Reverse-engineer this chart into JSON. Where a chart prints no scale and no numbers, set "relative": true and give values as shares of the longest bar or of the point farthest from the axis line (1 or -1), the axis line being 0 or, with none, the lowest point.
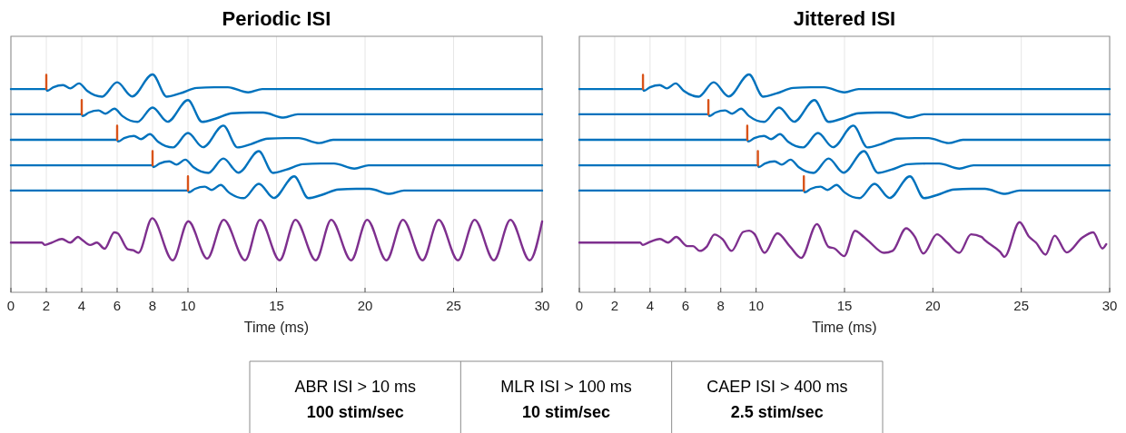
{
  "chart_data": [
    {
      "type": "line",
      "title": "Periodic ISI",
      "xlabel": "Time (ms)",
      "relative": true,
      "xlim": [
        0,
        30
      ],
      "xticks": [
        0,
        2,
        4,
        6,
        8,
        10,
        15,
        20,
        25,
        30
      ],
      "grid": "x",
      "tick_labels": "x",
      "line_style": "solid",
      "series": [
        {
          "color": "#0072bd",
          "x": [
            0,
            2,
            2.05,
            2.4,
            2.95,
            3.35,
            3.85,
            4.3,
            5.15,
            6,
            6.85,
            8,
            8.8,
            9.55,
            10.5,
            11.5,
            12.25,
            13.4,
            14.2,
            30
          ],
          "values": [
            0.933,
            0.933,
            0.925,
            0.941,
            0.951,
            0.936,
            0.959,
            0.925,
            0.898,
            0.964,
            0.899,
            1,
            0.898,
            0.913,
            0.938,
            0.941,
            0.941,
            0.918,
            0.933,
            0.933
          ]
        },
        {
          "color": "#0072bd",
          "x": [
            0,
            4,
            4.05,
            4.4,
            4.95,
            5.35,
            5.85,
            6.3,
            7.15,
            8,
            8.85,
            10,
            10.8,
            11.55,
            12.5,
            13.5,
            14.25,
            15.4,
            16.2,
            30
          ],
          "values": [
            0.817,
            0.817,
            0.809,
            0.825,
            0.835,
            0.82,
            0.843,
            0.809,
            0.782,
            0.848,
            0.783,
            0.882,
            0.782,
            0.797,
            0.822,
            0.825,
            0.825,
            0.802,
            0.817,
            0.817
          ]
        },
        {
          "color": "#0072bd",
          "x": [
            0,
            6,
            6.05,
            6.4,
            6.95,
            7.35,
            7.85,
            8.3,
            9.15,
            10,
            10.85,
            12,
            12.8,
            13.55,
            14.5,
            15.5,
            16.25,
            17.4,
            18.2,
            30
          ],
          "values": [
            0.7,
            0.7,
            0.692,
            0.708,
            0.718,
            0.703,
            0.726,
            0.692,
            0.665,
            0.731,
            0.666,
            0.765,
            0.665,
            0.68,
            0.705,
            0.708,
            0.708,
            0.685,
            0.7,
            0.7
          ]
        },
        {
          "color": "#0072bd",
          "x": [
            0,
            8,
            8.05,
            8.4,
            8.95,
            9.35,
            9.85,
            10.3,
            11.15,
            12,
            12.85,
            14,
            14.8,
            15.55,
            16.5,
            17.5,
            18.25,
            19.4,
            20.2,
            30
          ],
          "values": [
            0.583,
            0.583,
            0.575,
            0.591,
            0.601,
            0.586,
            0.609,
            0.575,
            0.548,
            0.614,
            0.549,
            0.648,
            0.548,
            0.563,
            0.588,
            0.591,
            0.591,
            0.568,
            0.583,
            0.583
          ]
        },
        {
          "color": "#0072bd",
          "x": [
            0,
            10,
            10.05,
            10.4,
            10.95,
            11.35,
            11.85,
            12.3,
            13.15,
            14,
            14.85,
            16,
            16.8,
            17.55,
            18.5,
            19.5,
            20.25,
            21.4,
            22.2,
            30
          ],
          "values": [
            0.467,
            0.467,
            0.459,
            0.475,
            0.485,
            0.47,
            0.493,
            0.459,
            0.432,
            0.498,
            0.433,
            0.532,
            0.432,
            0.447,
            0.472,
            0.475,
            0.475,
            0.452,
            0.467,
            0.467
          ]
        },
        {
          "color": "#7e2f8e",
          "x": [
            0,
            1.75,
            1.91,
            2.33,
            2.88,
            3.35,
            3.79,
            3.99,
            4.47,
            4.86,
            5.29,
            5.84,
            6.03,
            6.61,
            6.91,
            7.2,
            7.98,
            9.14,
            10.02,
            11.09,
            12.02,
            13.23,
            14.07,
            15.18,
            16.07,
            17.22,
            18.09,
            19.22,
            20.12,
            21.21,
            22.14,
            23.25,
            24.16,
            25.25,
            26.19,
            27.28,
            28.21,
            29.3,
            30
          ],
          "values": [
            0.228,
            0.228,
            0.217,
            0.229,
            0.245,
            0.228,
            0.254,
            0.243,
            0.217,
            0.228,
            0.2,
            0.275,
            0.271,
            0.197,
            0.193,
            0.181,
            0.34,
            0.147,
            0.326,
            0.155,
            0.333,
            0.147,
            0.333,
            0.147,
            0.333,
            0.147,
            0.333,
            0.147,
            0.333,
            0.147,
            0.333,
            0.147,
            0.333,
            0.147,
            0.333,
            0.147,
            0.333,
            0.147,
            0.325
          ]
        },
        {
          "color": "#d95319",
          "x": [
            2,
            2,
            null,
            4,
            4,
            null,
            6,
            6,
            null,
            8,
            8,
            null,
            10,
            10
          ],
          "values": [
            0.933,
            0.998,
            null,
            0.817,
            0.882,
            null,
            0.7,
            0.765,
            null,
            0.583,
            0.648,
            null,
            0.467,
            0.532
          ]
        }
      ]
    },
    {
      "type": "line",
      "title": "Jittered ISI",
      "xlabel": "Time (ms)",
      "relative": true,
      "xlim": [
        0,
        30
      ],
      "xticks": [
        0,
        2,
        4,
        6,
        8,
        10,
        15,
        20,
        25,
        30
      ],
      "grid": "x",
      "tick_labels": "x",
      "line_style": "solid",
      "series": [
        {
          "color": "#0072bd",
          "x": [
            0,
            3.6,
            3.65,
            4,
            4.55,
            4.95,
            5.45,
            5.9,
            6.75,
            7.6,
            8.45,
            9.6,
            10.4,
            11.15,
            12.1,
            13.1,
            13.85,
            15,
            15.8,
            30
          ],
          "values": [
            0.933,
            0.933,
            0.925,
            0.941,
            0.951,
            0.936,
            0.959,
            0.925,
            0.898,
            0.964,
            0.899,
            1,
            0.898,
            0.913,
            0.938,
            0.941,
            0.941,
            0.918,
            0.933,
            0.933
          ]
        },
        {
          "color": "#0072bd",
          "x": [
            0,
            7.3,
            7.35,
            7.7,
            8.25,
            8.65,
            9.15,
            9.6,
            10.45,
            11.3,
            12.15,
            13.3,
            14.1,
            14.85,
            15.8,
            16.8,
            17.55,
            18.7,
            19.5,
            30
          ],
          "values": [
            0.817,
            0.817,
            0.809,
            0.825,
            0.835,
            0.82,
            0.843,
            0.809,
            0.782,
            0.848,
            0.783,
            0.882,
            0.782,
            0.797,
            0.822,
            0.825,
            0.825,
            0.802,
            0.817,
            0.817
          ]
        },
        {
          "color": "#0072bd",
          "x": [
            0,
            9.5,
            9.55,
            9.9,
            10.45,
            10.85,
            11.35,
            11.8,
            12.65,
            13.5,
            14.35,
            15.5,
            16.3,
            17.05,
            18,
            19,
            19.75,
            20.9,
            21.7,
            30
          ],
          "values": [
            0.7,
            0.7,
            0.692,
            0.708,
            0.718,
            0.703,
            0.726,
            0.692,
            0.665,
            0.731,
            0.666,
            0.765,
            0.665,
            0.68,
            0.705,
            0.708,
            0.708,
            0.685,
            0.7,
            0.7
          ]
        },
        {
          "color": "#0072bd",
          "x": [
            0,
            10.1,
            10.15,
            10.5,
            11.05,
            11.45,
            11.95,
            12.4,
            13.25,
            14.1,
            14.95,
            16.1,
            16.9,
            17.65,
            18.6,
            19.6,
            20.35,
            21.5,
            22.3,
            30
          ],
          "values": [
            0.583,
            0.583,
            0.575,
            0.591,
            0.601,
            0.586,
            0.609,
            0.575,
            0.548,
            0.614,
            0.549,
            0.648,
            0.548,
            0.563,
            0.588,
            0.591,
            0.591,
            0.568,
            0.583,
            0.583
          ]
        },
        {
          "color": "#0072bd",
          "x": [
            0,
            12.7,
            12.75,
            13.1,
            13.65,
            14.05,
            14.55,
            15,
            15.85,
            16.7,
            17.55,
            18.7,
            19.5,
            20.25,
            21.2,
            22.2,
            22.95,
            24.1,
            24.9,
            30
          ],
          "values": [
            0.467,
            0.467,
            0.459,
            0.475,
            0.485,
            0.47,
            0.493,
            0.459,
            0.432,
            0.498,
            0.433,
            0.532,
            0.432,
            0.447,
            0.472,
            0.475,
            0.475,
            0.452,
            0.467,
            0.467
          ]
        },
        {
          "color": "#7e2f8e",
          "x": [
            0,
            3.44,
            3.59,
            3.92,
            4.56,
            5.02,
            5.48,
            6.1,
            6.43,
            6.81,
            7.2,
            7.64,
            8.11,
            8.61,
            9.27,
            9.61,
            9.9,
            10.48,
            11.2,
            11.93,
            12.55,
            13.44,
            14.09,
            14.44,
            14.98,
            15.6,
            16.08,
            16.37,
            17.24,
            17.72,
            18.49,
            18.98,
            19.46,
            20.23,
            20.81,
            21.49,
            22.16,
            22.74,
            22.93,
            23.8,
            24.05,
            24.9,
            25.44,
            25.83,
            26.37,
            26.89,
            27.57,
            28.44,
            29.07,
            29.59,
            29.81
          ],
          "values": [
            0.228,
            0.228,
            0.217,
            0.229,
            0.245,
            0.228,
            0.254,
            0.212,
            0.212,
            0.19,
            0.209,
            0.265,
            0.243,
            0.19,
            0.277,
            0.283,
            0.268,
            0.181,
            0.271,
            0.209,
            0.158,
            0.313,
            0.209,
            0.201,
            0.166,
            0.282,
            0.255,
            0.235,
            0.181,
            0.19,
            0.294,
            0.255,
            0.178,
            0.266,
            0.228,
            0.181,
            0.266,
            0.255,
            0.24,
            0.186,
            0.163,
            0.322,
            0.255,
            0.228,
            0.173,
            0.26,
            0.183,
            0.25,
            0.275,
            0.201,
            0.221
          ]
        },
        {
          "color": "#d95319",
          "x": [
            3.6,
            3.6,
            null,
            7.3,
            7.3,
            null,
            9.5,
            9.5,
            null,
            10.1,
            10.1,
            null,
            12.7,
            12.7
          ],
          "values": [
            0.933,
            0.998,
            null,
            0.817,
            0.882,
            null,
            0.7,
            0.765,
            null,
            0.583,
            0.648,
            null,
            0.467,
            0.532
          ]
        }
      ]
    },
    {
      "type": "other",
      "annotations": [
        "ABR ISI > 10 ms",
        "100 stim/sec",
        "MLR ISI > 100 ms",
        "10 stim/sec",
        "CAEP ISI > 400 ms",
        "2.5 stim/sec"
      ]
    }
  ]
}
